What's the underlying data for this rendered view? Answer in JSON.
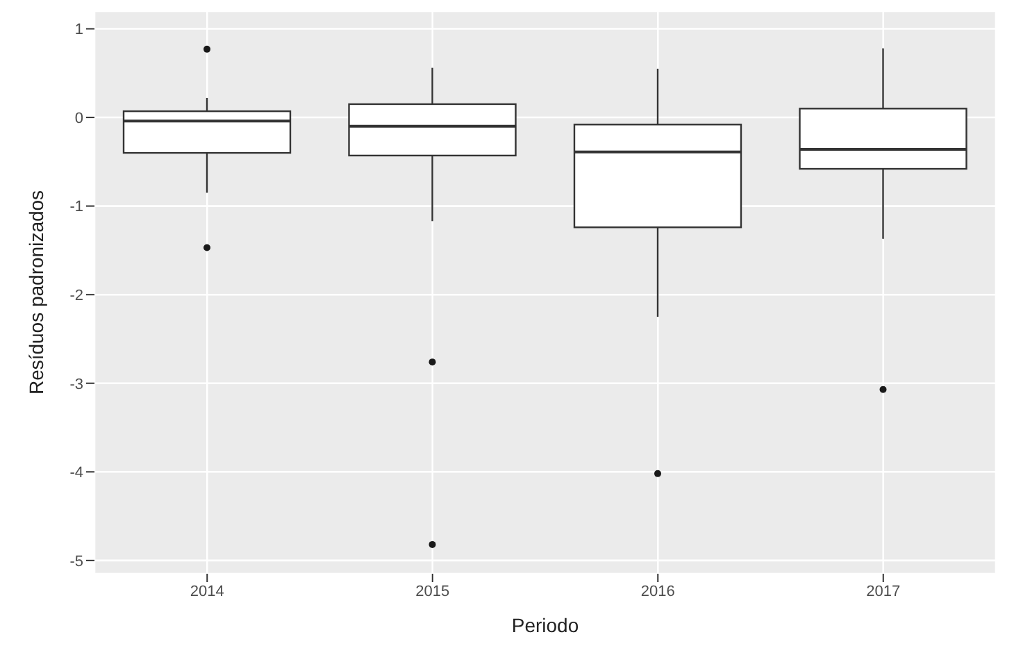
{
  "chart_data": {
    "type": "box",
    "xlabel": "Periodo",
    "ylabel": "Resíduos padronizados",
    "categories": [
      "2014",
      "2015",
      "2016",
      "2017"
    ],
    "boxes": [
      {
        "low": -0.85,
        "q1": -0.4,
        "median": -0.04,
        "q3": 0.07,
        "high": 0.22,
        "outliers": [
          0.77,
          -1.47
        ]
      },
      {
        "low": -1.17,
        "q1": -0.43,
        "median": -0.1,
        "q3": 0.15,
        "high": 0.56,
        "outliers": [
          -2.76,
          -4.82
        ]
      },
      {
        "low": -2.25,
        "q1": -1.24,
        "median": -0.39,
        "q3": -0.08,
        "high": 0.55,
        "outliers": [
          -4.02
        ]
      },
      {
        "low": -1.37,
        "q1": -0.58,
        "median": -0.36,
        "q3": 0.1,
        "high": 0.78,
        "outliers": [
          -3.07
        ]
      }
    ],
    "ylim": [
      -5.15,
      1.2
    ],
    "yticks": [
      -5,
      -4,
      -3,
      -2,
      -1,
      0,
      1
    ],
    "grid": true
  }
}
